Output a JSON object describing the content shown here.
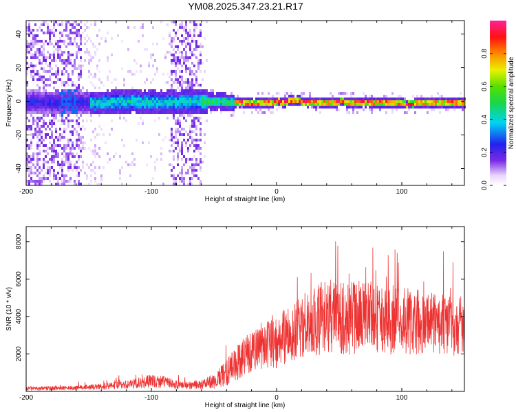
{
  "title": "YM08.2025.347.23.21.R17",
  "chart_data": [
    {
      "type": "heatmap",
      "name": "spectrogram",
      "xlabel": "Height of straight line (km)",
      "ylabel": "Frequency (Hz)",
      "xlim": [
        -200,
        150
      ],
      "ylim": [
        -50,
        48
      ],
      "xticks": [
        -200,
        -100,
        0,
        100
      ],
      "yticks": [
        -40,
        -20,
        0,
        20,
        40
      ],
      "colorbar": {
        "label": "Normalized spectral amplitude",
        "range": [
          0.0,
          1.0
        ],
        "ticks": [
          0.0,
          0.2,
          0.4,
          0.6,
          0.8
        ],
        "tick_labels": [
          "0.0",
          "0.2",
          "0.4",
          "0.6",
          "0.8"
        ]
      },
      "signal": {
        "noise_region_x": [
          -200,
          -55
        ],
        "strong_noise_bands_x": [
          [
            -200,
            -157
          ],
          [
            -85,
            -60
          ]
        ],
        "band_center_hz": 0,
        "band_halfwidth_hz": [
          8,
          3
        ],
        "peak_amplitude_x": [
          -30,
          150
        ],
        "peak_amplitude": 0.95
      }
    },
    {
      "type": "line",
      "name": "snr",
      "xlabel": "Height of straight line (km)",
      "ylabel": "SNR (10 * v/v)",
      "xlim": [
        -200,
        150
      ],
      "ylim": [
        0,
        8800
      ],
      "xticks": [
        -200,
        -100,
        0,
        100
      ],
      "yticks": [
        2000,
        4000,
        6000,
        8000
      ],
      "color": "#ee3333",
      "envelope": {
        "x": [
          -200,
          -180,
          -160,
          -140,
          -120,
          -100,
          -90,
          -80,
          -70,
          -60,
          -50,
          -40,
          -30,
          -20,
          -10,
          0,
          10,
          20,
          30,
          40,
          50,
          60,
          70,
          80,
          90,
          100,
          110,
          120,
          130,
          140,
          150
        ],
        "mean": [
          150,
          170,
          200,
          250,
          350,
          550,
          500,
          350,
          330,
          380,
          550,
          1000,
          1600,
          2100,
          2400,
          2700,
          3100,
          3500,
          3800,
          4000,
          4000,
          3900,
          4000,
          4000,
          3900,
          3800,
          3700,
          3600,
          3600,
          3500,
          3500
        ],
        "spread": [
          120,
          130,
          140,
          200,
          280,
          450,
          400,
          280,
          250,
          300,
          500,
          900,
          1200,
          1500,
          1600,
          1800,
          2000,
          2200,
          2400,
          2500,
          2500,
          2500,
          2500,
          2500,
          2400,
          2300,
          2200,
          2100,
          2000,
          2000,
          2000
        ]
      }
    }
  ]
}
